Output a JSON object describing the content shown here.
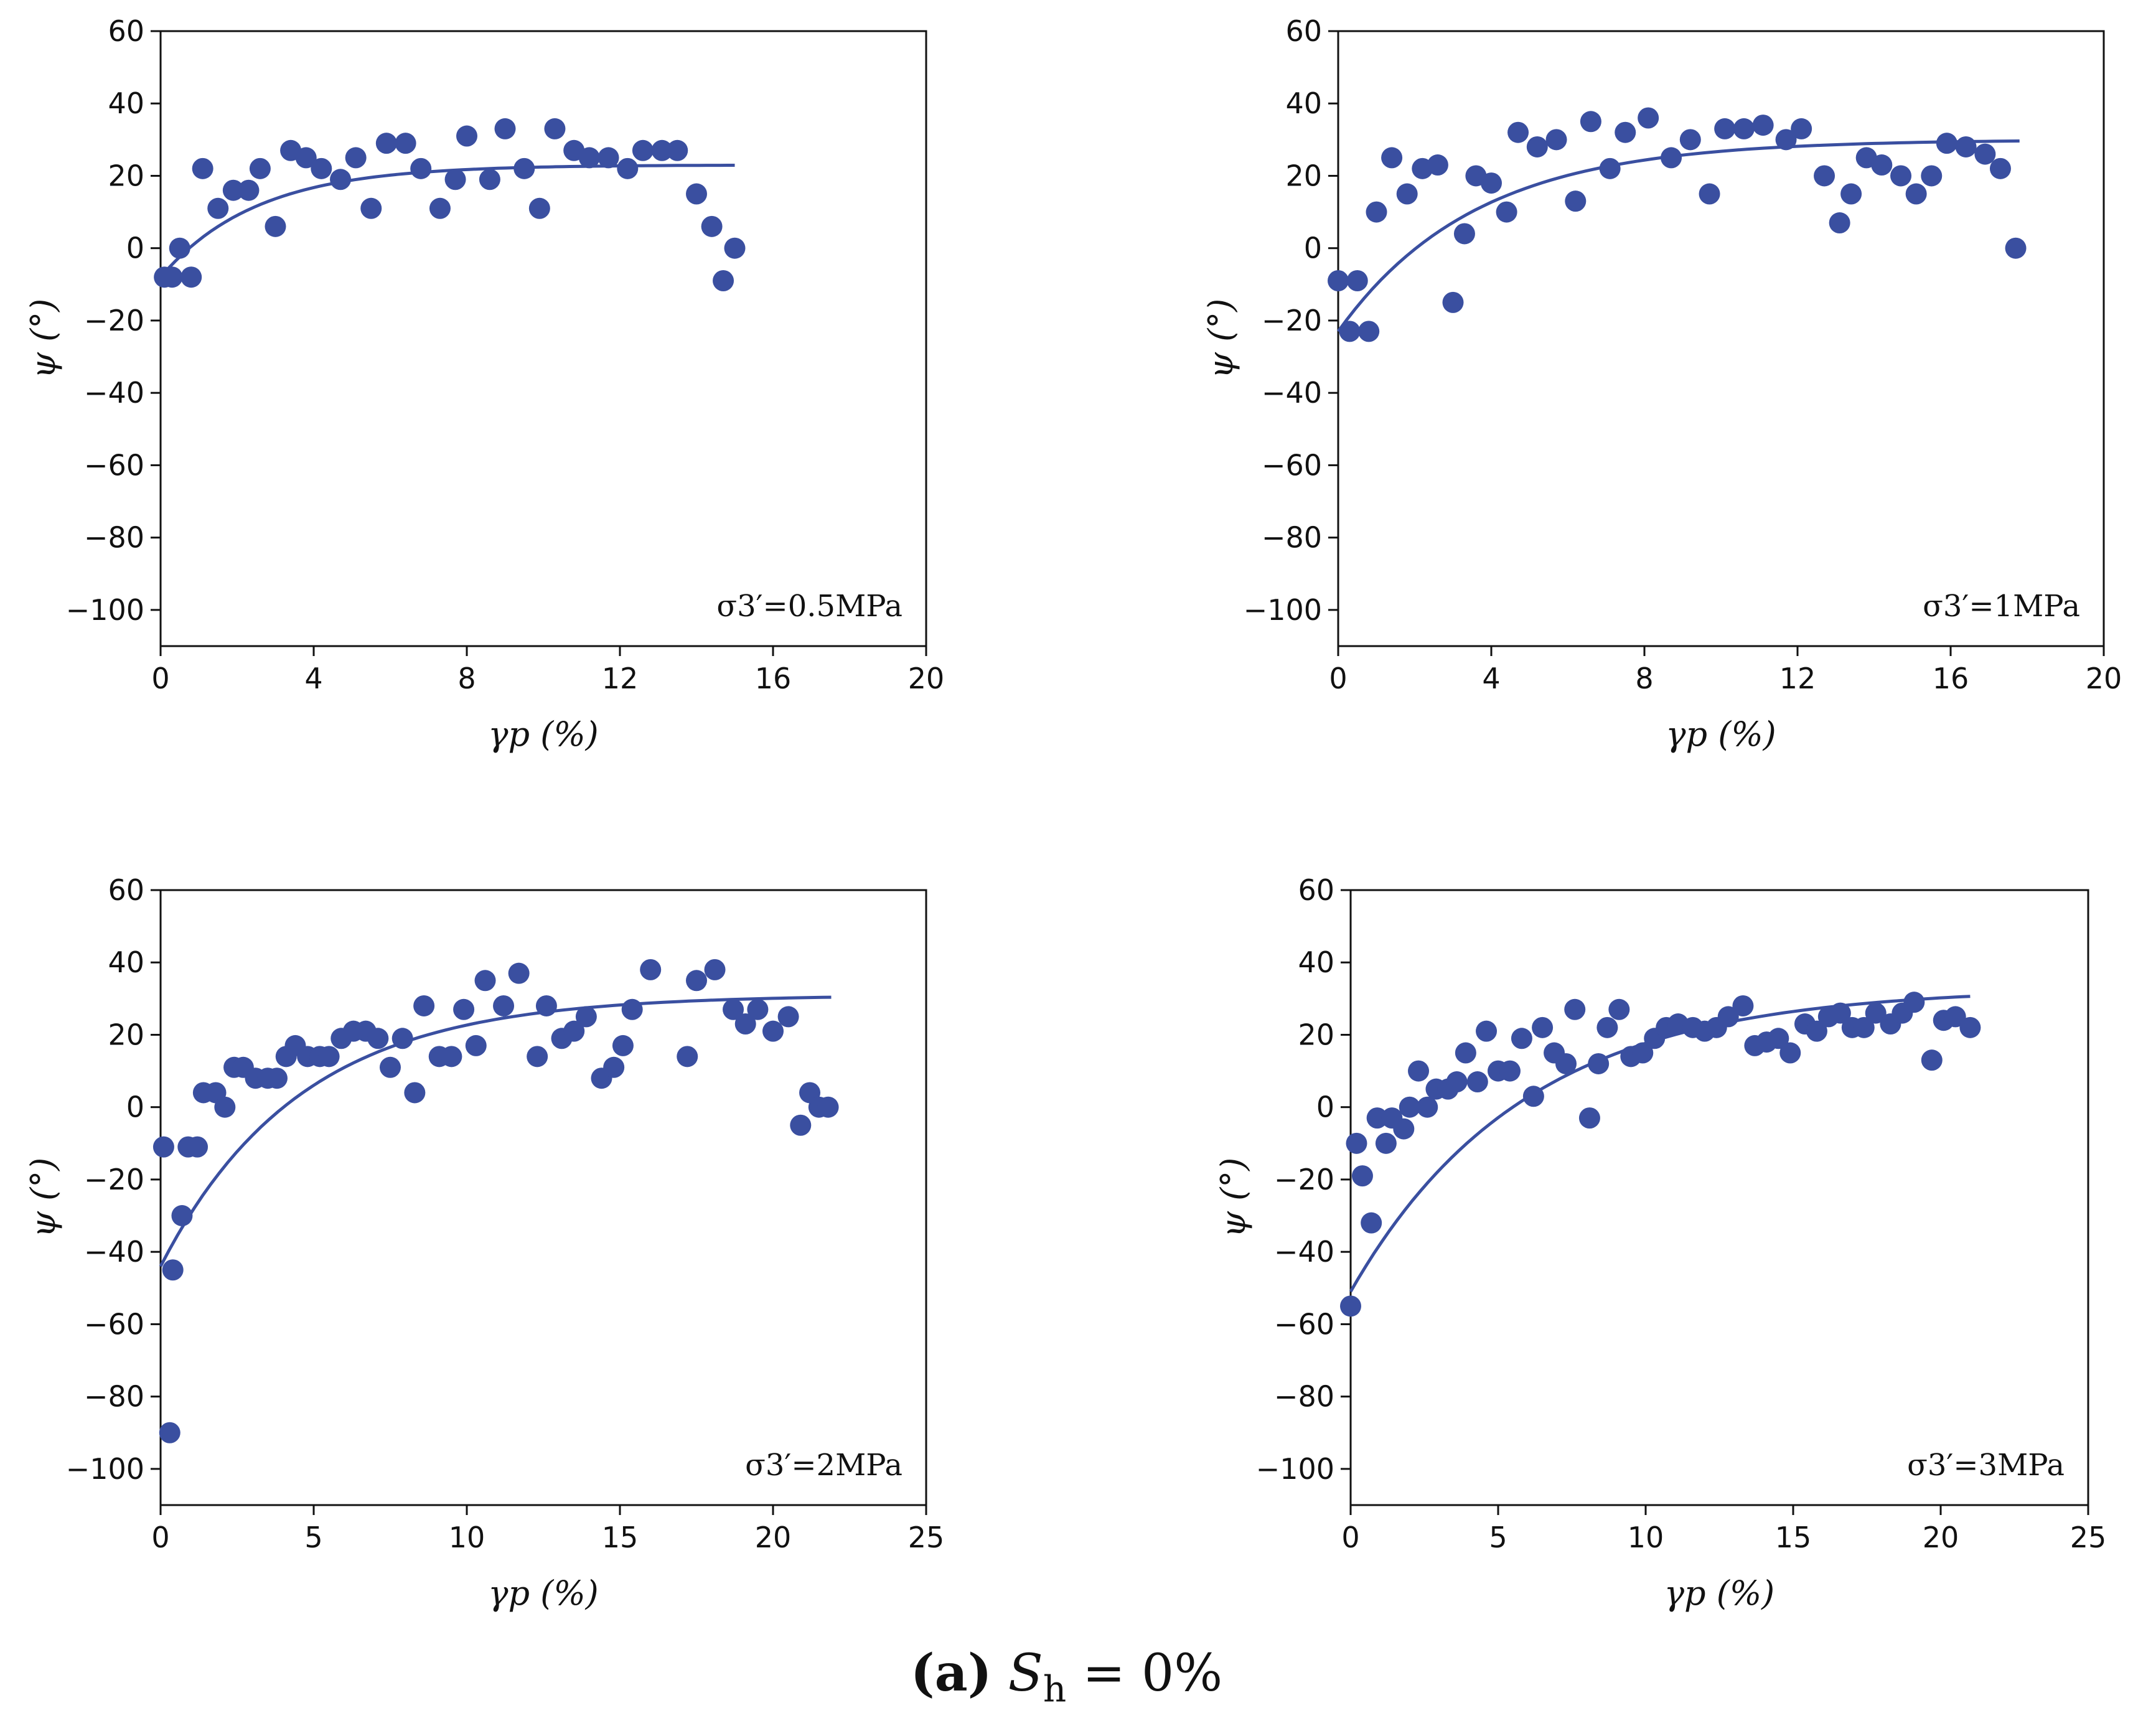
{
  "figure": {
    "caption_label": "(a)",
    "caption_var": "S",
    "caption_sub": "h",
    "caption_rest": " = 0%",
    "marker_color": "#3a4fa0",
    "line_color": "#3a4fa0"
  },
  "chart_data": [
    {
      "type": "scatter",
      "annotation": "σ3′=0.5MPa",
      "xlabel": "γp (%)",
      "ylabel": "ψ (°)",
      "xlim": [
        0,
        20
      ],
      "ylim": [
        -110,
        60
      ],
      "xticks": [
        0,
        4,
        8,
        12,
        16,
        20
      ],
      "yticks": [
        60,
        40,
        20,
        0,
        -20,
        -40,
        -60,
        -80,
        -100
      ],
      "points": [
        [
          0.1,
          -8
        ],
        [
          0.3,
          -8
        ],
        [
          0.5,
          0
        ],
        [
          0.8,
          -8
        ],
        [
          1.1,
          22
        ],
        [
          1.5,
          11
        ],
        [
          1.9,
          16
        ],
        [
          2.3,
          16
        ],
        [
          2.6,
          22
        ],
        [
          3.0,
          6
        ],
        [
          3.4,
          27
        ],
        [
          3.8,
          25
        ],
        [
          4.2,
          22
        ],
        [
          4.7,
          19
        ],
        [
          5.1,
          25
        ],
        [
          5.5,
          11
        ],
        [
          5.9,
          29
        ],
        [
          6.4,
          29
        ],
        [
          6.8,
          22
        ],
        [
          7.3,
          11
        ],
        [
          7.7,
          19
        ],
        [
          8.0,
          31
        ],
        [
          8.6,
          19
        ],
        [
          9.0,
          33
        ],
        [
          9.5,
          22
        ],
        [
          9.9,
          11
        ],
        [
          10.3,
          33
        ],
        [
          10.8,
          27
        ],
        [
          11.2,
          25
        ],
        [
          11.7,
          25
        ],
        [
          12.2,
          22
        ],
        [
          12.6,
          27
        ],
        [
          13.1,
          27
        ],
        [
          13.5,
          27
        ],
        [
          14.0,
          15
        ],
        [
          14.4,
          6
        ],
        [
          14.7,
          -9
        ],
        [
          15.0,
          0
        ]
      ],
      "fit": {
        "asymptote": 23,
        "start": -8,
        "rate": 0.4,
        "x_end": 15
      }
    },
    {
      "type": "scatter",
      "annotation": "σ3′=1MPa",
      "xlabel": "γp (%)",
      "ylabel": "ψ (°)",
      "xlim": [
        0,
        20
      ],
      "ylim": [
        -110,
        60
      ],
      "xticks": [
        0,
        4,
        8,
        12,
        16,
        20
      ],
      "yticks": [
        60,
        40,
        20,
        0,
        -20,
        -40,
        -60,
        -80,
        -100
      ],
      "points": [
        [
          0.0,
          -9
        ],
        [
          0.3,
          -23
        ],
        [
          0.5,
          -9
        ],
        [
          0.8,
          -23
        ],
        [
          1.0,
          10
        ],
        [
          1.4,
          25
        ],
        [
          1.8,
          15
        ],
        [
          2.2,
          22
        ],
        [
          2.6,
          23
        ],
        [
          3.0,
          -15
        ],
        [
          3.3,
          4
        ],
        [
          3.6,
          20
        ],
        [
          4.0,
          18
        ],
        [
          4.4,
          10
        ],
        [
          4.7,
          32
        ],
        [
          5.2,
          28
        ],
        [
          5.7,
          30
        ],
        [
          6.2,
          13
        ],
        [
          6.6,
          35
        ],
        [
          7.1,
          22
        ],
        [
          7.5,
          32
        ],
        [
          8.1,
          36
        ],
        [
          8.7,
          25
        ],
        [
          9.2,
          30
        ],
        [
          9.7,
          15
        ],
        [
          10.1,
          33
        ],
        [
          10.6,
          33
        ],
        [
          11.1,
          34
        ],
        [
          11.7,
          30
        ],
        [
          12.1,
          33
        ],
        [
          12.7,
          20
        ],
        [
          13.1,
          7
        ],
        [
          13.4,
          15
        ],
        [
          13.8,
          25
        ],
        [
          14.2,
          23
        ],
        [
          14.7,
          20
        ],
        [
          15.1,
          15
        ],
        [
          15.5,
          20
        ],
        [
          15.9,
          29
        ],
        [
          16.4,
          28
        ],
        [
          16.9,
          26
        ],
        [
          17.3,
          22
        ],
        [
          17.7,
          0
        ]
      ],
      "fit": {
        "asymptote": 30,
        "start": -23,
        "rate": 0.28,
        "x_end": 17.8
      }
    },
    {
      "type": "scatter",
      "annotation": "σ3′=2MPa",
      "xlabel": "γp (%)",
      "ylabel": "ψ (°)",
      "xlim": [
        0,
        25
      ],
      "ylim": [
        -110,
        60
      ],
      "xticks": [
        0,
        5,
        10,
        15,
        20,
        25
      ],
      "yticks": [
        60,
        40,
        20,
        0,
        -20,
        -40,
        -60,
        -80,
        -100
      ],
      "points": [
        [
          0.1,
          -11
        ],
        [
          0.3,
          -90
        ],
        [
          0.4,
          -45
        ],
        [
          0.7,
          -30
        ],
        [
          0.9,
          -11
        ],
        [
          1.2,
          -11
        ],
        [
          1.4,
          4
        ],
        [
          1.8,
          4
        ],
        [
          2.1,
          0
        ],
        [
          2.4,
          11
        ],
        [
          2.7,
          11
        ],
        [
          3.1,
          8
        ],
        [
          3.5,
          8
        ],
        [
          3.8,
          8
        ],
        [
          4.1,
          14
        ],
        [
          4.4,
          17
        ],
        [
          4.8,
          14
        ],
        [
          5.2,
          14
        ],
        [
          5.5,
          14
        ],
        [
          5.9,
          19
        ],
        [
          6.3,
          21
        ],
        [
          6.7,
          21
        ],
        [
          7.1,
          19
        ],
        [
          7.5,
          11
        ],
        [
          7.9,
          19
        ],
        [
          8.3,
          4
        ],
        [
          8.6,
          28
        ],
        [
          9.1,
          14
        ],
        [
          9.5,
          14
        ],
        [
          9.9,
          27
        ],
        [
          10.3,
          17
        ],
        [
          10.6,
          35
        ],
        [
          11.2,
          28
        ],
        [
          11.7,
          37
        ],
        [
          12.3,
          14
        ],
        [
          12.6,
          28
        ],
        [
          13.1,
          19
        ],
        [
          13.5,
          21
        ],
        [
          13.9,
          25
        ],
        [
          14.4,
          8
        ],
        [
          14.8,
          11
        ],
        [
          15.1,
          17
        ],
        [
          15.4,
          27
        ],
        [
          16.0,
          38
        ],
        [
          17.2,
          14
        ],
        [
          17.5,
          35
        ],
        [
          18.1,
          38
        ],
        [
          18.7,
          27
        ],
        [
          19.1,
          23
        ],
        [
          19.5,
          27
        ],
        [
          20.0,
          21
        ],
        [
          20.5,
          25
        ],
        [
          20.9,
          -5
        ],
        [
          21.2,
          4
        ],
        [
          21.5,
          0
        ],
        [
          21.8,
          0
        ]
      ],
      "fit": {
        "asymptote": 31,
        "start": -44,
        "rate": 0.22,
        "x_end": 21.9
      }
    },
    {
      "type": "scatter",
      "annotation": "σ3′=3MPa",
      "xlabel": "γp (%)",
      "ylabel": "ψ (°)",
      "xlim": [
        0,
        25
      ],
      "ylim": [
        -110,
        60
      ],
      "xticks": [
        0,
        5,
        10,
        15,
        20,
        25
      ],
      "yticks": [
        60,
        40,
        20,
        0,
        -20,
        -40,
        -60,
        -80,
        -100
      ],
      "points": [
        [
          0.0,
          -55
        ],
        [
          0.2,
          -10
        ],
        [
          0.4,
          -19
        ],
        [
          0.7,
          -32
        ],
        [
          0.9,
          -3
        ],
        [
          1.2,
          -10
        ],
        [
          1.4,
          -3
        ],
        [
          1.8,
          -6
        ],
        [
          2.0,
          0
        ],
        [
          2.3,
          10
        ],
        [
          2.6,
          0
        ],
        [
          2.9,
          5
        ],
        [
          3.3,
          5
        ],
        [
          3.6,
          7
        ],
        [
          3.9,
          15
        ],
        [
          4.3,
          7
        ],
        [
          4.6,
          21
        ],
        [
          5.0,
          10
        ],
        [
          5.4,
          10
        ],
        [
          5.8,
          19
        ],
        [
          6.2,
          3
        ],
        [
          6.5,
          22
        ],
        [
          6.9,
          15
        ],
        [
          7.3,
          12
        ],
        [
          7.6,
          27
        ],
        [
          8.1,
          -3
        ],
        [
          8.4,
          12
        ],
        [
          8.7,
          22
        ],
        [
          9.1,
          27
        ],
        [
          9.5,
          14
        ],
        [
          9.9,
          15
        ],
        [
          10.3,
          19
        ],
        [
          10.7,
          22
        ],
        [
          11.1,
          23
        ],
        [
          11.6,
          22
        ],
        [
          12.0,
          21
        ],
        [
          12.4,
          22
        ],
        [
          12.8,
          25
        ],
        [
          13.3,
          28
        ],
        [
          13.7,
          17
        ],
        [
          14.1,
          18
        ],
        [
          14.5,
          19
        ],
        [
          14.9,
          15
        ],
        [
          15.4,
          23
        ],
        [
          15.8,
          21
        ],
        [
          16.2,
          25
        ],
        [
          16.6,
          26
        ],
        [
          17.0,
          22
        ],
        [
          17.4,
          22
        ],
        [
          17.8,
          26
        ],
        [
          18.3,
          23
        ],
        [
          18.7,
          26
        ],
        [
          19.1,
          29
        ],
        [
          19.7,
          13
        ],
        [
          20.1,
          24
        ],
        [
          20.5,
          25
        ],
        [
          21.0,
          22
        ]
      ],
      "fit": {
        "asymptote": 33,
        "start": -51,
        "rate": 0.17,
        "x_end": 21
      }
    }
  ]
}
